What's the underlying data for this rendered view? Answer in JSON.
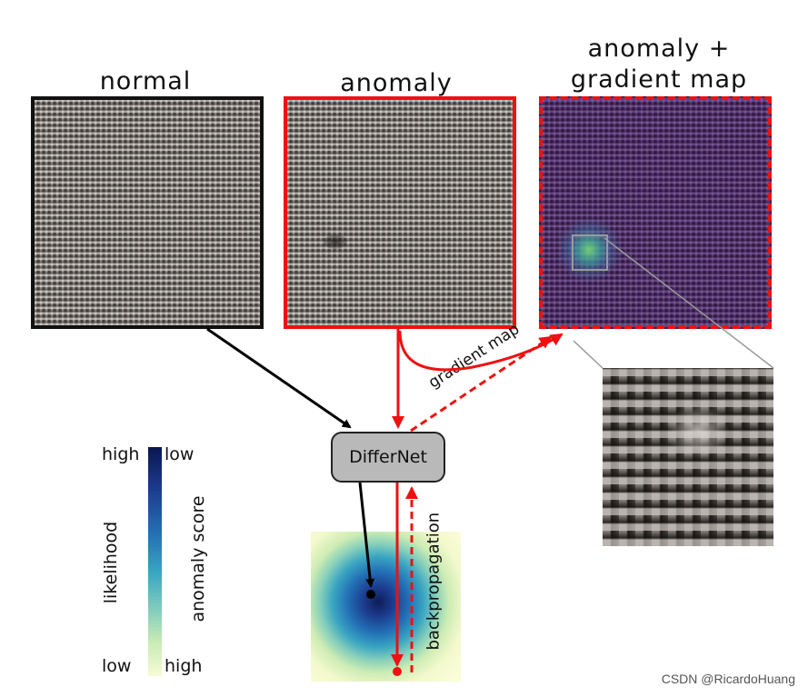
{
  "panels": {
    "normal_title": "normal",
    "anomaly_title": "anomaly",
    "gradient_title_line1": "anomaly +",
    "gradient_title_line2": "gradient map"
  },
  "model": {
    "label": "DifferNet"
  },
  "arrows": {
    "gradient_map": "gradient map",
    "backpropagation": "backpropagation"
  },
  "colorbar": {
    "left_axis_label": "likelihood",
    "left_top": "high",
    "left_bottom": "low",
    "right_axis_label": "anomaly score",
    "right_top": "low",
    "right_bottom": "high"
  },
  "colors": {
    "normal_path": "#000000",
    "anomaly_path": "#ee1111",
    "normal_border": "#111111",
    "anomaly_border": "#ee1111"
  },
  "watermark": "CSDN @RicardoHuang"
}
